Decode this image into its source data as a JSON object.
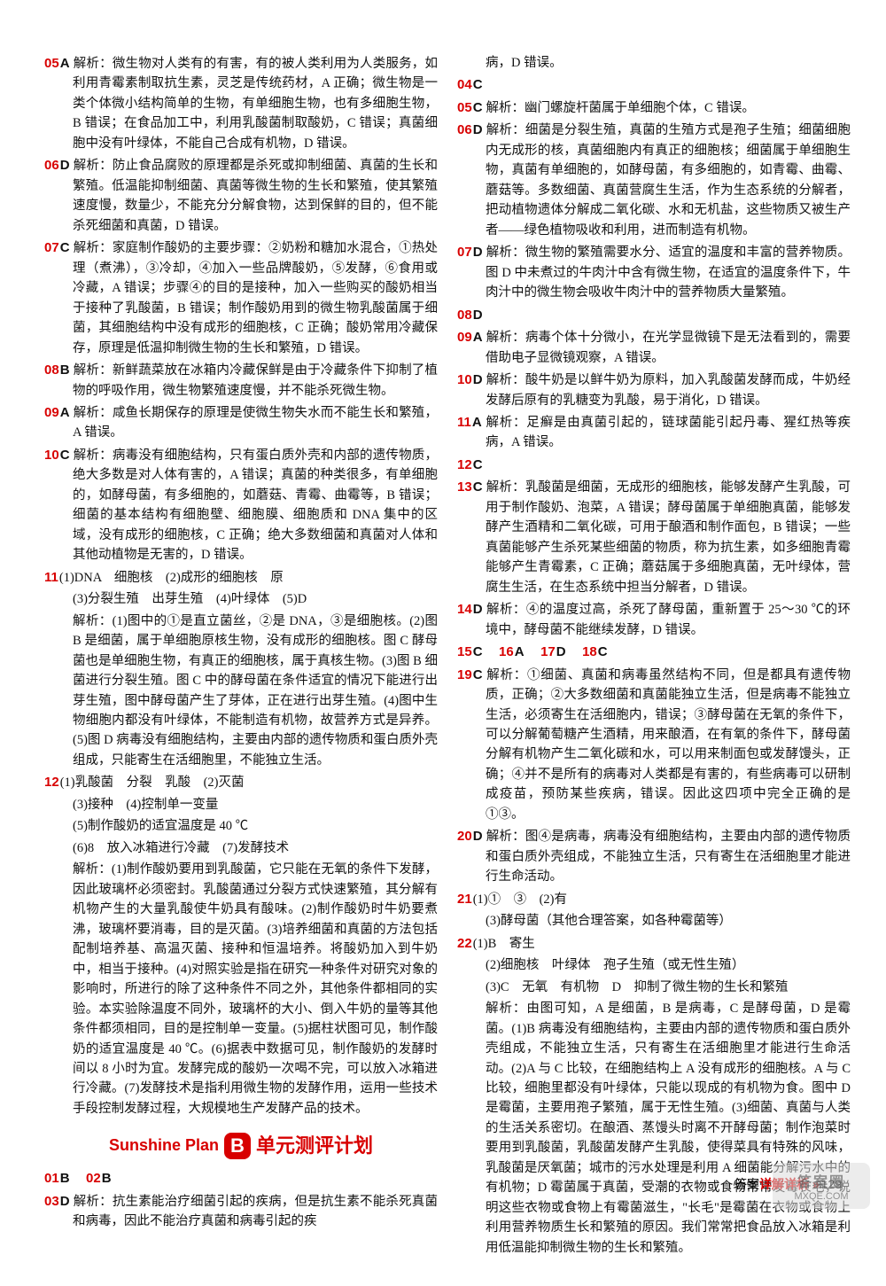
{
  "left": [
    {
      "n": "05",
      "a": "A",
      "t": "解析：微生物对人类有的有害，有的被人类利用为人类服务，如利用青霉素制取抗生素，灵芝是传统药材，A 正确；微生物是一类个体微小结构简单的生物，有单细胞生物，也有多细胞生物，B 错误；在食品加工中，利用乳酸菌制取酸奶，C 错误；真菌细胞中没有叶绿体，不能自己合成有机物，D 错误。"
    },
    {
      "n": "06",
      "a": "D",
      "t": "解析：防止食品腐败的原理都是杀死或抑制细菌、真菌的生长和繁殖。低温能抑制细菌、真菌等微生物的生长和繁殖，使其繁殖速度慢，数量少，不能充分分解食物，达到保鲜的目的，但不能杀死细菌和真菌，D 错误。"
    },
    {
      "n": "07",
      "a": "C",
      "t": "解析：家庭制作酸奶的主要步骤：②奶粉和糖加水混合，①热处理（煮沸），③冷却，④加入一些品牌酸奶，⑤发酵，⑥食用或冷藏，A 错误；步骤④的目的是接种，加入一些购买的酸奶相当于接种了乳酸菌，B 错误；制作酸奶用到的微生物乳酸菌属于细菌，其细胞结构中没有成形的细胞核，C 正确；酸奶常用冷藏保存，原理是低温抑制微生物的生长和繁殖，D 错误。"
    },
    {
      "n": "08",
      "a": "B",
      "t": "解析：新鲜蔬菜放在冰箱内冷藏保鲜是由于冷藏条件下抑制了植物的呼吸作用，微生物繁殖速度慢，并不能杀死微生物。"
    },
    {
      "n": "09",
      "a": "A",
      "t": "解析：咸鱼长期保存的原理是使微生物失水而不能生长和繁殖，A 错误。"
    },
    {
      "n": "10",
      "a": "C",
      "t": "解析：病毒没有细胞结构，只有蛋白质外壳和内部的遗传物质，绝大多数是对人体有害的，A 错误；真菌的种类很多，有单细胞的，如酵母菌，有多细胞的，如蘑菇、青霉、曲霉等，B 错误；细菌的基本结构有细胞壁、细胞膜、细胞质和 DNA 集中的区域，没有成形的细胞核，C 正确；绝大多数细菌和真菌对人体和其他动植物是无害的，D 错误。"
    },
    {
      "n": "11",
      "a": "",
      "t": "(1)DNA　细胞核　(2)成形的细胞核　原",
      "sub": [
        "(3)分裂生殖　出芽生殖　(4)叶绿体　(5)D",
        "解析：(1)图中的①是直立菌丝，②是 DNA，③是细胞核。(2)图 B 是细菌，属于单细胞原核生物，没有成形的细胞核。图 C 酵母菌也是单细胞生物，有真正的细胞核，属于真核生物。(3)图 B 细菌进行分裂生殖。图 C 中的酵母菌在条件适宜的情况下能进行出芽生殖，图中酵母菌产生了芽体，正在进行出芽生殖。(4)图中生物细胞内都没有叶绿体，不能制造有机物，故营养方式是异养。(5)图 D 病毒没有细胞结构，主要由内部的遗传物质和蛋白质外壳组成，只能寄生在活细胞里，不能独立生活。"
      ]
    },
    {
      "n": "12",
      "a": "",
      "t": "(1)乳酸菌　分裂　乳酸　(2)灭菌",
      "sub": [
        "(3)接种　(4)控制单一变量",
        "(5)制作酸奶的适宜温度是 40 ℃",
        "(6)8　放入冰箱进行冷藏　(7)发酵技术",
        "解析：(1)制作酸奶要用到乳酸菌，它只能在无氧的条件下发酵，因此玻璃杯必须密封。乳酸菌通过分裂方式快速繁殖，其分解有机物产生的大量乳酸使牛奶具有酸味。(2)制作酸奶时牛奶要煮沸，玻璃杯要消毒，目的是灭菌。(3)培养细菌和真菌的方法包括配制培养基、高温灭菌、接种和恒温培养。将酸奶加入到牛奶中，相当于接种。(4)对照实验是指在研究一种条件对研究对象的影响时，所进行的除了这种条件不同之外，其他条件都相同的实验。本实验除温度不同外，玻璃杯的大小、倒入牛奶的量等其他条件都须相同，目的是控制单一变量。(5)据柱状图可见，制作酸奶的适宜温度是 40 ℃。(6)据表中数据可见，制作酸奶的发酵时间以 8 小时为宜。发酵完成的酸奶一次喝不完，可以放入冰箱进行冷藏。(7)发酵技术是指利用微生物的发酵作用，运用一些技术手段控制发酵过程，大规模地生产发酵产品的技术。"
      ]
    }
  ],
  "section": {
    "sunshine": "Sunshine Plan",
    "badge": "B",
    "title": "单元测评计划"
  },
  "leftB": [
    {
      "group": [
        {
          "n": "01",
          "a": "B"
        },
        {
          "n": "02",
          "a": "B"
        }
      ]
    },
    {
      "n": "03",
      "a": "D",
      "t": "解析：抗生素能治疗细菌引起的疾病，但是抗生素不能杀死真菌和病毒，因此不能治疗真菌和病毒引起的疾"
    }
  ],
  "right": [
    {
      "cont": "病，D 错误。"
    },
    {
      "n": "04",
      "a": "C",
      "t": ""
    },
    {
      "n": "05",
      "a": "C",
      "t": "解析：幽门螺旋杆菌属于单细胞个体，C 错误。"
    },
    {
      "n": "06",
      "a": "D",
      "t": "解析：细菌是分裂生殖，真菌的生殖方式是孢子生殖；细菌细胞内无成形的核，真菌细胞内有真正的细胞核；细菌属于单细胞生物，真菌有单细胞的，如酵母菌，有多细胞的，如青霉、曲霉、蘑菇等。多数细菌、真菌营腐生生活，作为生态系统的分解者，把动植物遗体分解成二氧化碳、水和无机盐，这些物质又被生产者——绿色植物吸收和利用，进而制造有机物。"
    },
    {
      "n": "07",
      "a": "D",
      "t": "解析：微生物的繁殖需要水分、适宜的温度和丰富的营养物质。图 D 中未煮过的牛肉汁中含有微生物，在适宜的温度条件下，牛肉汁中的微生物会吸收牛肉汁中的营养物质大量繁殖。"
    },
    {
      "n": "08",
      "a": "D",
      "t": ""
    },
    {
      "n": "09",
      "a": "A",
      "t": "解析：病毒个体十分微小，在光学显微镜下是无法看到的，需要借助电子显微镜观察，A 错误。"
    },
    {
      "n": "10",
      "a": "D",
      "t": "解析：酸牛奶是以鲜牛奶为原料，加入乳酸菌发酵而成，牛奶经发酵后原有的乳糖变为乳酸，易于消化，D 错误。"
    },
    {
      "n": "11",
      "a": "A",
      "t": "解析：足癣是由真菌引起的，链球菌能引起丹毒、猩红热等疾病，A 错误。"
    },
    {
      "n": "12",
      "a": "C",
      "t": ""
    },
    {
      "n": "13",
      "a": "C",
      "t": "解析：乳酸菌是细菌，无成形的细胞核，能够发酵产生乳酸，可用于制作酸奶、泡菜，A 错误；酵母菌属于单细胞真菌，能够发酵产生酒精和二氧化碳，可用于酿酒和制作面包，B 错误；一些真菌能够产生杀死某些细菌的物质，称为抗生素，如多细胞青霉能够产生青霉素，C 正确；蘑菇属于多细胞真菌，无叶绿体，营腐生生活，在生态系统中担当分解者，D 错误。"
    },
    {
      "n": "14",
      "a": "D",
      "t": "解析：④的温度过高，杀死了酵母菌，重新置于 25～30 ℃的环境中，酵母菌不能继续发酵，D 错误。"
    },
    {
      "group": [
        {
          "n": "15",
          "a": "C"
        },
        {
          "n": "16",
          "a": "A"
        },
        {
          "n": "17",
          "a": "D"
        },
        {
          "n": "18",
          "a": "C"
        }
      ]
    },
    {
      "n": "19",
      "a": "C",
      "t": "解析：①细菌、真菌和病毒虽然结构不同，但是都具有遗传物质，正确；②大多数细菌和真菌能独立生活，但是病毒不能独立生活，必须寄生在活细胞内，错误；③酵母菌在无氧的条件下，可以分解葡萄糖产生酒精，用来酿酒，在有氧的条件下，酵母菌分解有机物产生二氧化碳和水，可以用来制面包或发酵馒头，正确；④并不是所有的病毒对人类都是有害的，有些病毒可以研制成疫苗，预防某些疾病，错误。因此这四项中完全正确的是①③。"
    },
    {
      "n": "20",
      "a": "D",
      "t": "解析：图④是病毒，病毒没有细胞结构，主要由内部的遗传物质和蛋白质外壳组成，不能独立生活，只有寄生在活细胞里才能进行生命活动。"
    },
    {
      "n": "21",
      "a": "",
      "t": "(1)①　③　(2)有",
      "sub": [
        "(3)酵母菌（其他合理答案，如各种霉菌等）"
      ]
    },
    {
      "n": "22",
      "a": "",
      "t": "(1)B　寄生",
      "sub": [
        "(2)细胞核　叶绿体　孢子生殖（或无性生殖）",
        "(3)C　无氧　有机物　D　抑制了微生物的生长和繁殖",
        "解析：由图可知，A 是细菌，B 是病毒，C 是酵母菌，D 是霉菌。(1)B 病毒没有细胞结构，主要由内部的遗传物质和蛋白质外壳组成，不能独立生活，只有寄生在活细胞里才能进行生命活动。(2)A 与 C 比较，在细胞结构上 A 没有成形的细胞核。A 与 C 比较，细胞里都没有叶绿体，只能以现成的有机物为食。图中 D 是霉菌，主要用孢子繁殖，属于无性生殖。(3)细菌、真菌与人类的生活关系密切。在酿酒、蒸馒头时离不开酵母菌；制作泡菜时要用到乳酸菌，乳酸菌发酵产生乳酸，使得菜具有特殊的风味，乳酸菌是厌氧菌；城市的污水处理是利用 A 细菌能分解污水中的有机物；D 霉菌属于真菌，受潮的衣物或食物常常发霉长毛，说明这些衣物或食物上有霉菌滋生，\"长毛\"是霉菌在衣物或食物上利用营养物质生长和繁殖的原因。我们常常把食品放入冰箱是利用低温能抑制微生物的生长和繁殖。"
      ]
    }
  ],
  "footer": {
    "label": "答案",
    "bold": "详解详析",
    "page": "129"
  },
  "watermark": {
    "top": "答案圈",
    "bot": "MXQE.COM"
  }
}
